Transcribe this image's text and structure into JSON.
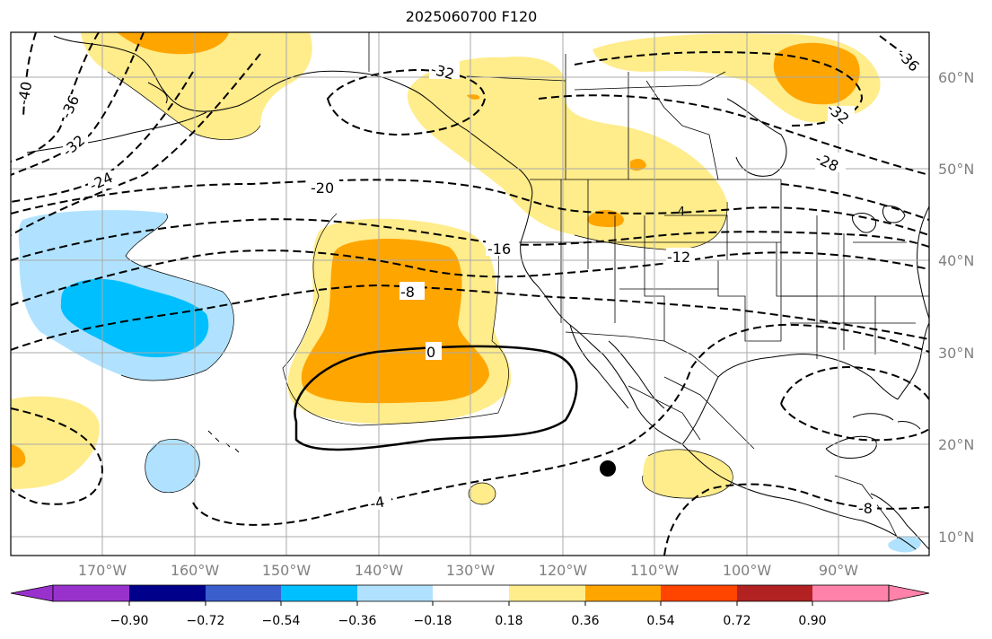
{
  "title": "2025060700 F120",
  "lat_labels": [
    "60°N",
    "50°N",
    "40°N",
    "30°N",
    "20°N",
    "10°N"
  ],
  "lon_labels": [
    "170°W",
    "160°W",
    "150°W",
    "140°W",
    "130°W",
    "120°W",
    "110°W",
    "100°W",
    "90°W"
  ],
  "colorbar": {
    "colors": [
      "#9932cc",
      "#00008b",
      "#3a5fcd",
      "#00bfff",
      "#b0e2ff",
      "#ffffff",
      "#ffec8b",
      "#ffa500",
      "#ff4500",
      "#b22222",
      "#ff82ab"
    ],
    "tick_labels": [
      "−0.90",
      "−0.72",
      "−0.54",
      "−0.36",
      "−0.18",
      "0.18",
      "0.36",
      "0.54",
      "0.72",
      "0.90"
    ]
  },
  "contour_labels": [
    "-40",
    "-36",
    "-32",
    "-24",
    "-20",
    "-32",
    "-16",
    "-8",
    "0",
    "-4",
    "-12",
    "-28",
    "-32",
    "-36",
    "-8",
    "-4"
  ],
  "colors": {
    "light_yellow": "#ffec8b",
    "orange": "#ffa500",
    "light_blue": "#b0e2ff",
    "deep_sky_blue": "#00bfff"
  }
}
